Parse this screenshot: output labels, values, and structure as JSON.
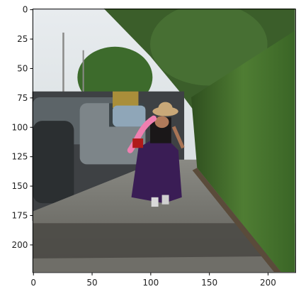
{
  "chart_data": {
    "type": "image",
    "xlim": [
      -0.5,
      223.5
    ],
    "ylim": [
      223.5,
      -0.5
    ],
    "xticks": [
      0,
      50,
      100,
      150,
      200
    ],
    "yticks": [
      0,
      25,
      50,
      75,
      100,
      125,
      150,
      175,
      200
    ]
  }
}
